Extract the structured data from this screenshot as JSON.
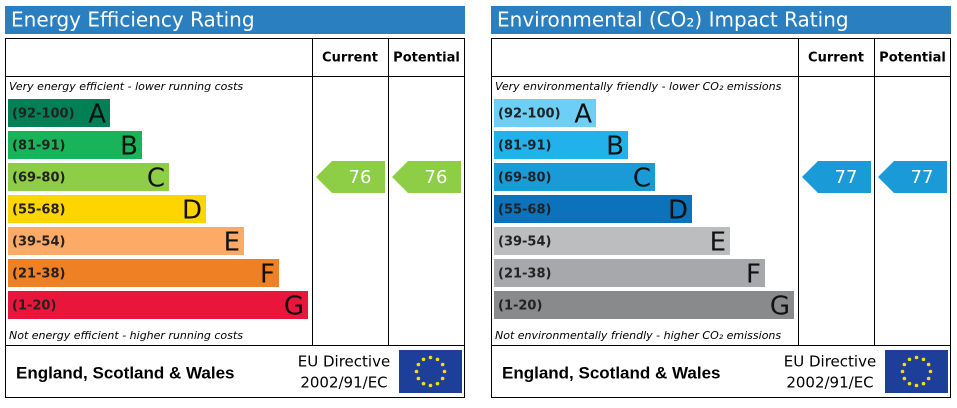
{
  "panels": [
    {
      "title": "Energy Efficiency Rating",
      "current_header": "Current",
      "potential_header": "Potential",
      "top_note": "Very energy efficient - lower running costs",
      "bottom_note": "Not energy efficient - higher running costs",
      "bands": [
        {
          "range": "(92-100)",
          "letter": "A",
          "color": "#008054"
        },
        {
          "range": "(81-91)",
          "letter": "B",
          "color": "#19b459"
        },
        {
          "range": "(69-80)",
          "letter": "C",
          "color": "#8dce46"
        },
        {
          "range": "(55-68)",
          "letter": "D",
          "color": "#ffd500"
        },
        {
          "range": "(39-54)",
          "letter": "E",
          "color": "#fcaa65"
        },
        {
          "range": "(21-38)",
          "letter": "F",
          "color": "#ef8023"
        },
        {
          "range": "(1-20)",
          "letter": "G",
          "color": "#e9153b"
        }
      ],
      "current": 76,
      "potential": 76,
      "arrow_color": "#8dce46",
      "footer": {
        "region": "England, Scotland & Wales",
        "directive": [
          "EU Directive",
          "2002/91/EC"
        ]
      }
    },
    {
      "title": "Environmental (CO₂) Impact Rating",
      "current_header": "Current",
      "potential_header": "Potential",
      "top_note": "Very environmentally friendly - lower CO₂ emissions",
      "bottom_note": "Not environmentally friendly - higher CO₂ emissions",
      "bands": [
        {
          "range": "(92-100)",
          "letter": "A",
          "color": "#6dcff6"
        },
        {
          "range": "(81-91)",
          "letter": "B",
          "color": "#22b1eb"
        },
        {
          "range": "(69-80)",
          "letter": "C",
          "color": "#1a9ad6"
        },
        {
          "range": "(55-68)",
          "letter": "D",
          "color": "#0b72bb"
        },
        {
          "range": "(39-54)",
          "letter": "E",
          "color": "#bbbdbf"
        },
        {
          "range": "(21-38)",
          "letter": "F",
          "color": "#a6a8ab"
        },
        {
          "range": "(1-20)",
          "letter": "G",
          "color": "#898a8c"
        }
      ],
      "current": 77,
      "potential": 77,
      "arrow_color": "#1a9ad6",
      "footer": {
        "region": "England, Scotland & Wales",
        "directive": [
          "EU Directive",
          "2002/91/EC"
        ]
      }
    }
  ]
}
